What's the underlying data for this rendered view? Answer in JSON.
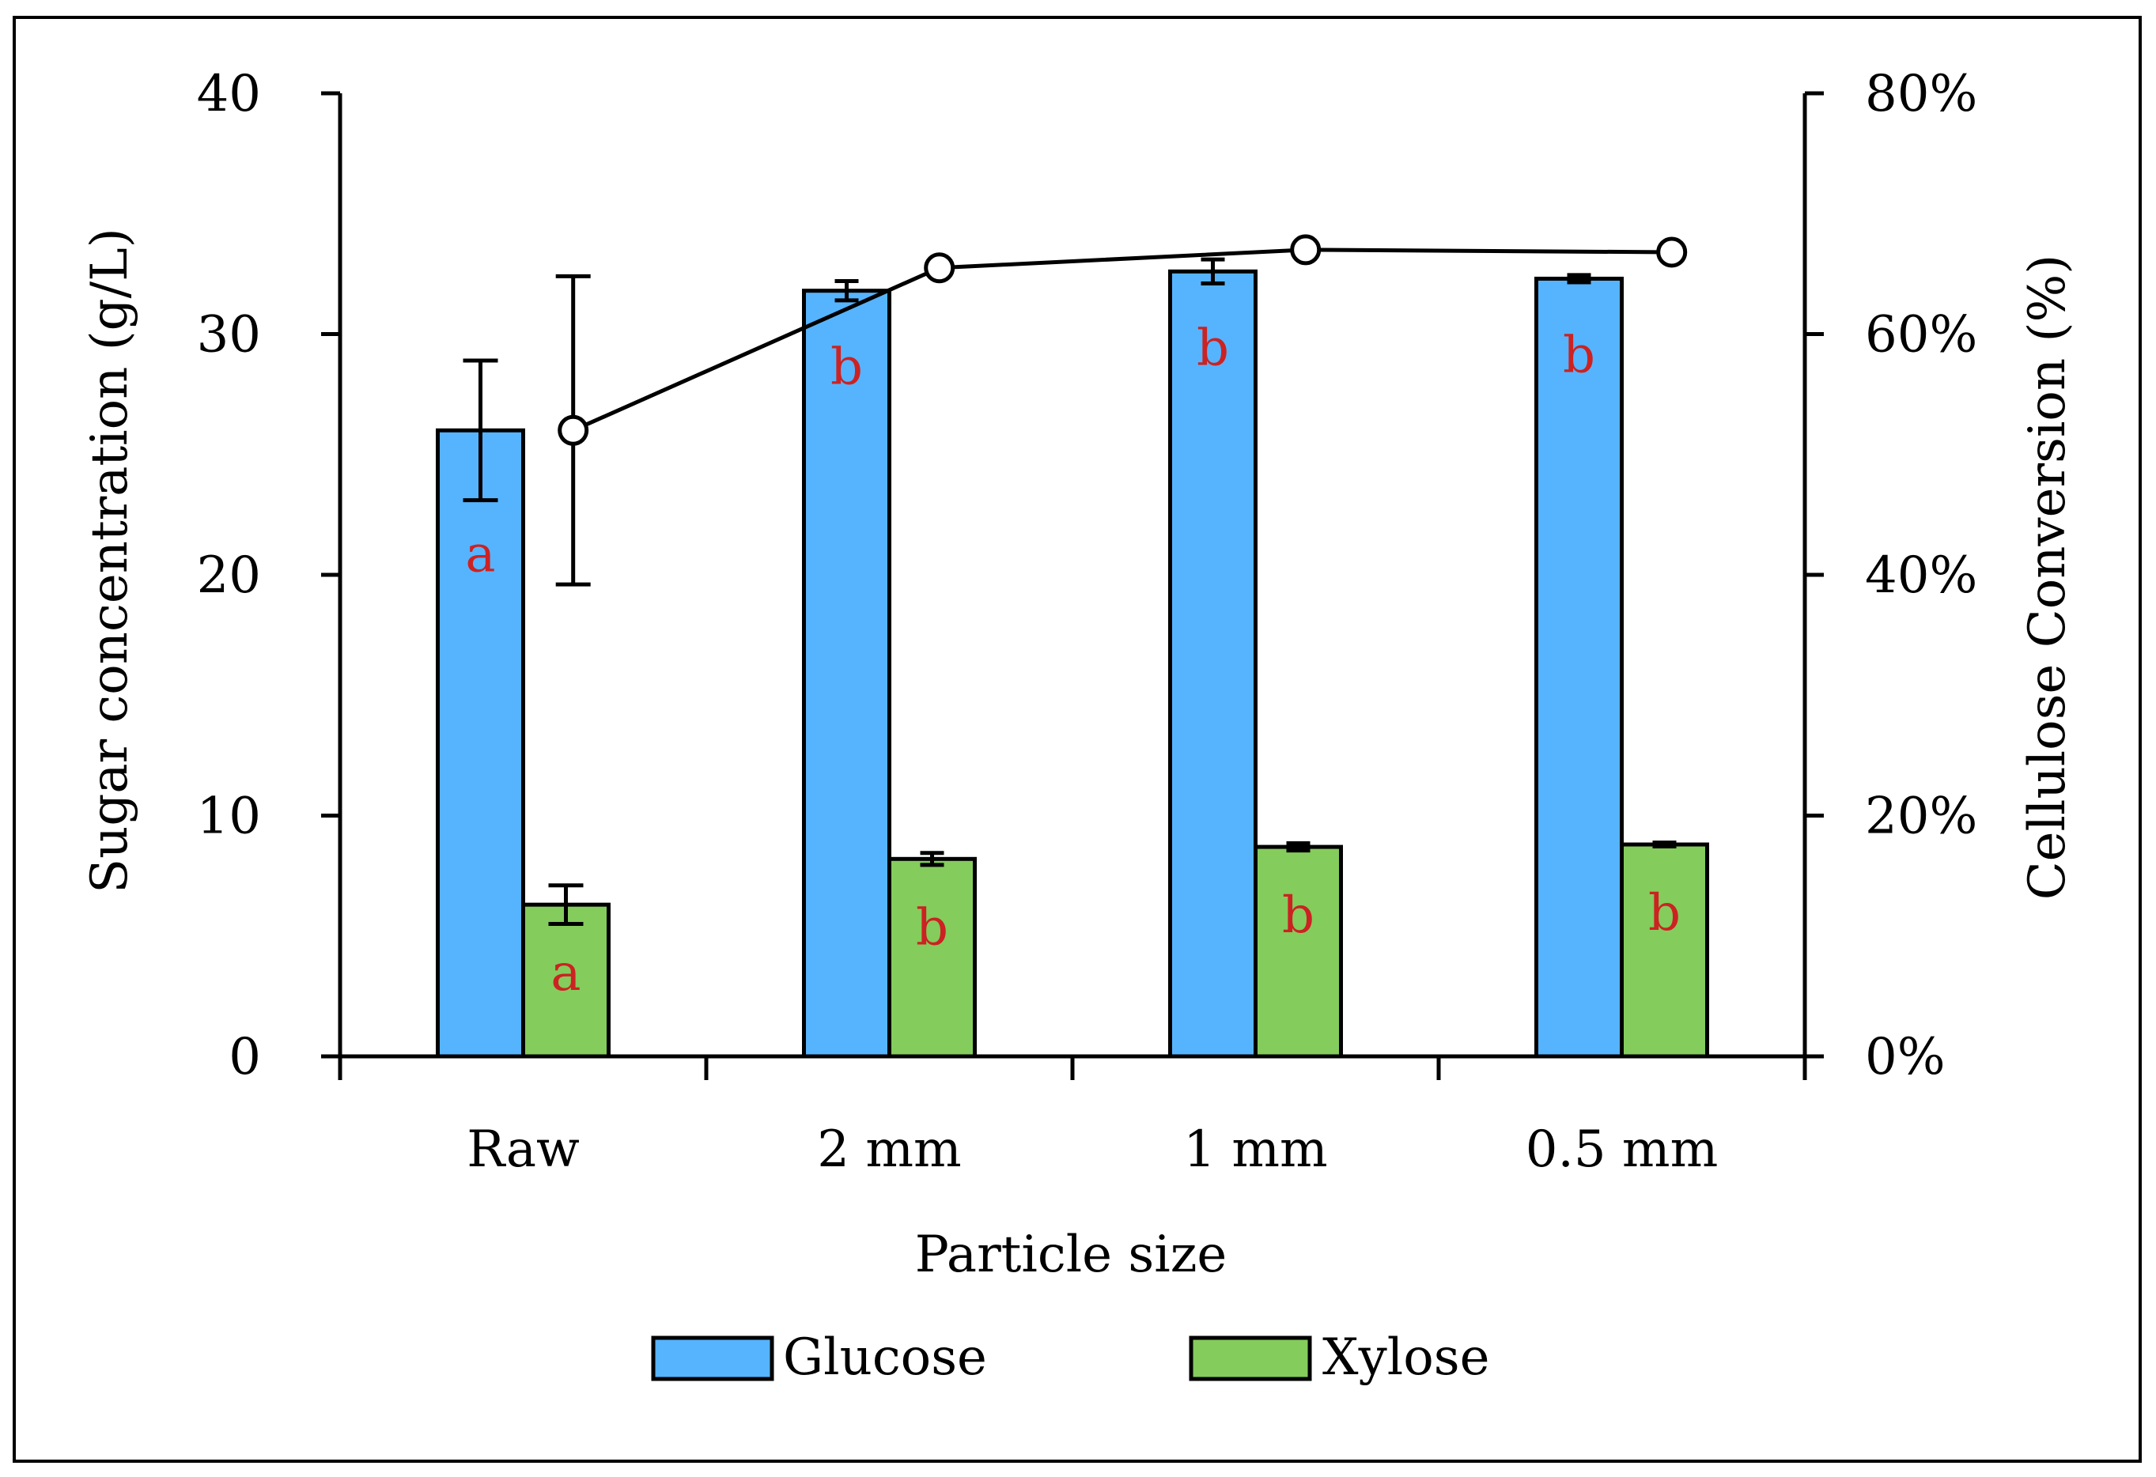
{
  "chart_data": {
    "type": "bar",
    "categories": [
      "Raw",
      "2 mm",
      "1 mm",
      "0.5 mm"
    ],
    "series": [
      {
        "name": "Glucose",
        "color": "#56B4FF",
        "values": [
          26.0,
          31.8,
          32.6,
          32.3
        ],
        "errors": [
          2.9,
          0.4,
          0.5,
          0.15
        ],
        "letters": [
          "a",
          "b",
          "b",
          "b"
        ]
      },
      {
        "name": "Xylose",
        "color": "#84CC5C",
        "values": [
          6.3,
          8.2,
          8.7,
          8.8
        ],
        "errors": [
          0.8,
          0.25,
          0.15,
          0.08
        ],
        "letters": [
          "a",
          "b",
          "b",
          "b"
        ]
      }
    ],
    "line": {
      "name": "Cellulose Conversion",
      "axis": "right",
      "values": [
        52,
        65.5,
        67,
        66.8
      ],
      "errors": [
        12.8,
        0,
        0,
        0
      ]
    },
    "xlabel": "Particle size",
    "ylabel": "Sugar concentration (g/L)",
    "y2label": "Cellulose Conversion (%)",
    "ylim": [
      0,
      40
    ],
    "y2lim": [
      0,
      80
    ],
    "yticks": [
      "0",
      "10",
      "20",
      "30",
      "40"
    ],
    "y2ticks": [
      "0%",
      "20%",
      "40%",
      "60%",
      "80%"
    ],
    "letter_color": "#CC2222",
    "legend_position": "bottom"
  }
}
